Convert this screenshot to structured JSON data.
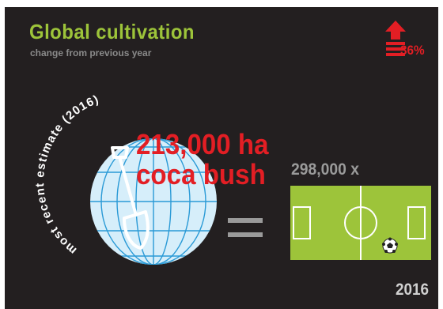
{
  "title": "Global cultivation",
  "subtitle": "change from previous year",
  "change": {
    "value": "36%",
    "direction": "up"
  },
  "estimate": {
    "arc_label": "most recent estimate (2016)",
    "area_line1": "213,000 ha",
    "area_line2": "coca bush"
  },
  "comparison": {
    "equals_symbol": "=",
    "fields_label": "298,000 x"
  },
  "year": "2016",
  "colors": {
    "background": "#231f20",
    "title_green": "#9dc43a",
    "accent_red": "#e31e24",
    "globe_blue": "#d6eefa",
    "field_green": "#9dc43a"
  },
  "icons": [
    "arrow-up-icon",
    "globe-icon",
    "shovel-icon",
    "soccer-field-icon",
    "soccer-ball-icon",
    "equals-icon"
  ]
}
